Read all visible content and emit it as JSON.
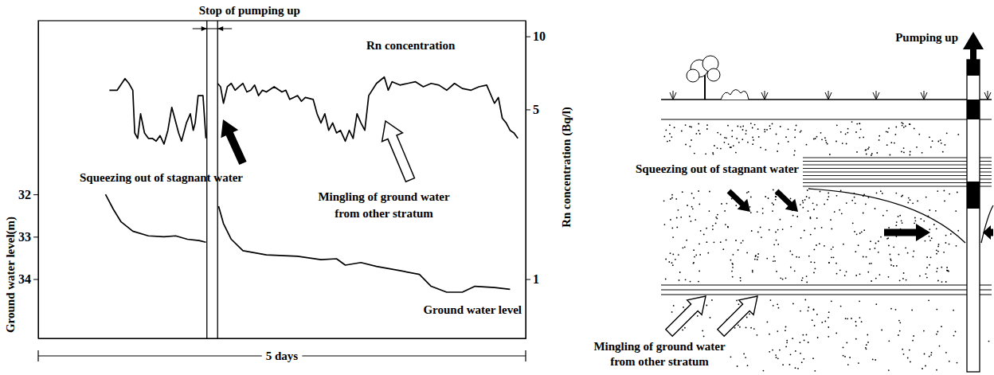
{
  "chart_data": {
    "type": "line",
    "x_label": "5 days",
    "xlim": [
      0,
      5
    ],
    "y_label": "Ground water level(m)",
    "ylim": [
      35.4,
      27.9
    ],
    "yticks": [
      32,
      33,
      34
    ],
    "y2_label": "Rn concentration (Bq/l)",
    "y2lim": [
      0.57,
      11.6
    ],
    "y2ticks": [
      1,
      5,
      10
    ],
    "log": "y2",
    "grid": false,
    "series": [
      {
        "name": "Rn concentration",
        "axis": "y2",
        "color": "#000000",
        "x": [
          0.73,
          0.81,
          0.89,
          0.93,
          0.97,
          0.99,
          1.02,
          1.05,
          1.09,
          1.13,
          1.17,
          1.21,
          1.25,
          1.29,
          1.33,
          1.37,
          1.4,
          1.44,
          1.47,
          1.52,
          1.56,
          1.59,
          1.61,
          1.64,
          1.69,
          1.72,
          1.78,
          1.84,
          1.87,
          1.9,
          1.94,
          1.98,
          2.02,
          2.06,
          2.1,
          2.14,
          2.18,
          2.22,
          2.26,
          2.3,
          2.34,
          2.42,
          2.5,
          2.54,
          2.58,
          2.62,
          2.66,
          2.7,
          2.74,
          2.82,
          2.86,
          2.9,
          2.94,
          2.98,
          3.02,
          3.06,
          3.1,
          3.15,
          3.19,
          3.23,
          3.27,
          3.31,
          3.35,
          3.39,
          3.47,
          3.55,
          3.59,
          3.63,
          3.71,
          3.79,
          3.87,
          3.95,
          4.03,
          4.11,
          4.19,
          4.27,
          4.35,
          4.44,
          4.52,
          4.6,
          4.68,
          4.72,
          4.76,
          4.8,
          4.84,
          4.88,
          4.92
        ],
        "values": [
          6.0,
          6.0,
          6.7,
          6.4,
          6.0,
          4.0,
          3.8,
          4.8,
          4.0,
          3.8,
          3.8,
          3.7,
          3.9,
          3.6,
          4.1,
          5.1,
          4.6,
          4.0,
          3.7,
          4.4,
          4.8,
          4.1,
          4.4,
          5.7,
          5.7,
          3.8,
          null,
          6.4,
          6.2,
          5.3,
          6.2,
          6.4,
          6.0,
          6.2,
          6.4,
          5.9,
          6.0,
          6.3,
          5.7,
          6.0,
          5.9,
          6.2,
          5.9,
          6.0,
          5.5,
          5.6,
          5.7,
          5.4,
          5.6,
          5.5,
          4.8,
          4.4,
          4.8,
          4.1,
          4.4,
          4.0,
          4.1,
          3.7,
          4.1,
          3.8,
          4.8,
          4.4,
          4.1,
          5.7,
          6.4,
          6.8,
          6.0,
          6.5,
          6.3,
          6.4,
          6.5,
          6.2,
          6.4,
          6.3,
          6.0,
          6.4,
          6.1,
          6.0,
          6.2,
          6.3,
          5.3,
          5.6,
          4.6,
          4.4,
          4.1,
          4.0,
          3.8
        ]
      },
      {
        "name": "Ground water level",
        "axis": "y",
        "color": "#000000",
        "x": [
          0.69,
          0.77,
          0.85,
          0.97,
          1.13,
          1.29,
          1.41,
          1.53,
          1.65,
          1.72,
          1.78,
          1.85,
          1.9,
          1.98,
          2.1,
          2.34,
          2.66,
          2.9,
          3.06,
          3.15,
          3.31,
          3.47,
          3.71,
          3.91,
          4.03,
          4.19,
          4.35,
          4.48,
          4.68,
          4.84
        ],
        "values": [
          32.0,
          32.35,
          32.65,
          32.87,
          32.98,
          33.0,
          32.98,
          33.06,
          33.09,
          33.13,
          null,
          32.28,
          32.69,
          33.06,
          33.33,
          33.43,
          33.46,
          33.54,
          33.52,
          33.67,
          33.61,
          33.7,
          33.8,
          33.89,
          34.17,
          34.31,
          34.31,
          34.17,
          34.2,
          34.24
        ]
      }
    ],
    "annotations": [
      {
        "text": "Stop of pumping up",
        "x": [
          1.73,
          1.84
        ]
      },
      {
        "text": "Squeezing out of stagnant water"
      },
      {
        "text": "Mingling of ground water from other stratum"
      }
    ]
  },
  "diagram": {
    "pumping_label": "Pumping up",
    "squeezing_label": "Squeezing out of stagnant water",
    "mingling_label": "Mingling of ground water from other stratum"
  }
}
